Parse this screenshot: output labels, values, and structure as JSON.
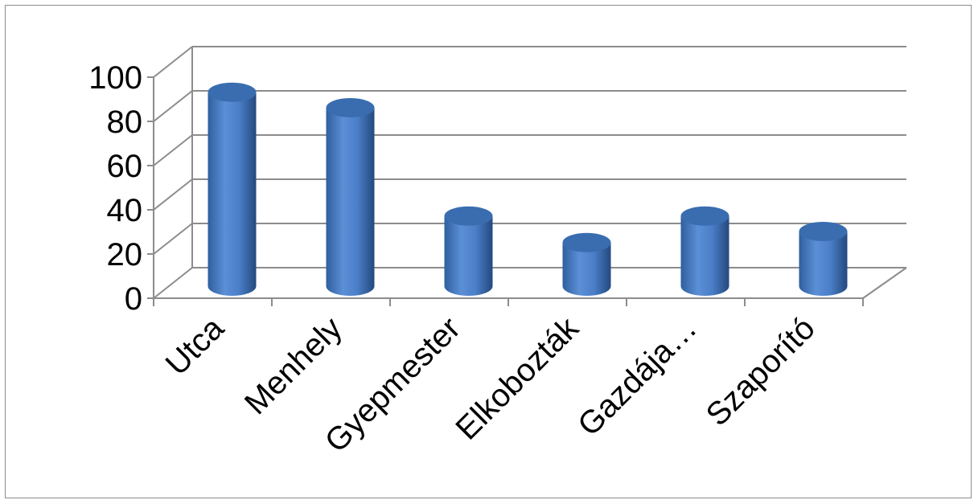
{
  "chart_data": {
    "type": "bar",
    "style": "3d-cylinder",
    "categories": [
      "Utca",
      "Menhely",
      "Gyepmester",
      "Elkobozták",
      "Gazdája…",
      "Szaporító"
    ],
    "values": [
      91,
      84,
      35,
      23,
      35,
      28
    ],
    "ylim": [
      0,
      100
    ],
    "yticks": [
      0,
      20,
      40,
      60,
      80,
      100
    ],
    "title": "",
    "xlabel": "",
    "ylabel": "",
    "grid": true,
    "legend": "none",
    "colors": {
      "bar_light": "#5b8fd6",
      "bar_mid": "#4a7ec7",
      "bar_dark": "#2a558f",
      "bar_top": "#3a6db0",
      "grid": "#8c8c8c",
      "axis": "#8c8c8c"
    }
  }
}
